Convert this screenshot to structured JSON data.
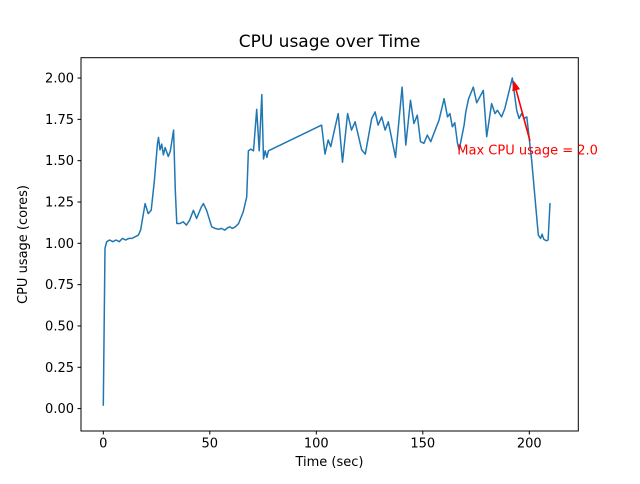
{
  "figure": {
    "kind": "matplotlib-line-figure",
    "background": "#ffffff",
    "spine_color": "#000000"
  },
  "chart_data": {
    "type": "line",
    "title": "CPU usage over Time",
    "xlabel": "Time (sec)",
    "ylabel": "CPU usage (cores)",
    "grid": false,
    "legend": "none",
    "xlim": [
      -10.47,
      223.0
    ],
    "ylim": [
      -0.1355,
      2.123
    ],
    "x_ticks": {
      "values": [
        0,
        50,
        100,
        150,
        200
      ],
      "labels": [
        "0",
        "50",
        "100",
        "150",
        "200"
      ]
    },
    "y_ticks": {
      "values": [
        0,
        0.25,
        0.5,
        0.75,
        1.0,
        1.25,
        1.5,
        1.75,
        2.0
      ],
      "labels": [
        "0.00",
        "0.25",
        "0.50",
        "0.75",
        "1.00",
        "1.25",
        "1.50",
        "1.75",
        "2.00"
      ]
    },
    "series": [
      {
        "name": "cpu-usage",
        "color": "#1f77b4",
        "line_width": 1.5,
        "points": [
          [
            0,
            0.02
          ],
          [
            0.8,
            0.97
          ],
          [
            1.6,
            1.01
          ],
          [
            3,
            1.02
          ],
          [
            4.5,
            1.01
          ],
          [
            6,
            1.02
          ],
          [
            7.5,
            1.01
          ],
          [
            9,
            1.03
          ],
          [
            10.5,
            1.02
          ],
          [
            12,
            1.03
          ],
          [
            13.5,
            1.03
          ],
          [
            15,
            1.04
          ],
          [
            16.5,
            1.05
          ],
          [
            17.5,
            1.08
          ],
          [
            19.6,
            1.24
          ],
          [
            21.1,
            1.18
          ],
          [
            22.5,
            1.2
          ],
          [
            24,
            1.38
          ],
          [
            25.4,
            1.6
          ],
          [
            25.9,
            1.64
          ],
          [
            26.6,
            1.565
          ],
          [
            27.4,
            1.6
          ],
          [
            28.2,
            1.535
          ],
          [
            29,
            1.58
          ],
          [
            30.5,
            1.525
          ],
          [
            31.5,
            1.56
          ],
          [
            32.2,
            1.62
          ],
          [
            33,
            1.685
          ],
          [
            33.8,
            1.32
          ],
          [
            34.5,
            1.12
          ],
          [
            36,
            1.12
          ],
          [
            37.5,
            1.13
          ],
          [
            39,
            1.11
          ],
          [
            40.5,
            1.14
          ],
          [
            42.3,
            1.2
          ],
          [
            43.8,
            1.15
          ],
          [
            46,
            1.22
          ],
          [
            47,
            1.24
          ],
          [
            48.5,
            1.2
          ],
          [
            50.9,
            1.1
          ],
          [
            52.5,
            1.09
          ],
          [
            54,
            1.085
          ],
          [
            55.5,
            1.09
          ],
          [
            57,
            1.08
          ],
          [
            58.5,
            1.095
          ],
          [
            59.5,
            1.1
          ],
          [
            60.5,
            1.09
          ],
          [
            62,
            1.1
          ],
          [
            63.5,
            1.12
          ],
          [
            65.7,
            1.19
          ],
          [
            67.3,
            1.28
          ],
          [
            68.1,
            1.56
          ],
          [
            69.2,
            1.57
          ],
          [
            70.5,
            1.56
          ],
          [
            72,
            1.81
          ],
          [
            73.2,
            1.56
          ],
          [
            74.4,
            1.9
          ],
          [
            75.2,
            1.51
          ],
          [
            76,
            1.56
          ],
          [
            76.8,
            1.52
          ],
          [
            77.5,
            1.56
          ],
          [
            102.5,
            1.715
          ],
          [
            104.1,
            1.54
          ],
          [
            105.6,
            1.625
          ],
          [
            106.8,
            1.585
          ],
          [
            108,
            1.655
          ],
          [
            110.3,
            1.785
          ],
          [
            112.3,
            1.49
          ],
          [
            114.7,
            1.785
          ],
          [
            116.5,
            1.685
          ],
          [
            118.2,
            1.735
          ],
          [
            121.3,
            1.565
          ],
          [
            123,
            1.54
          ],
          [
            126,
            1.755
          ],
          [
            127.6,
            1.795
          ],
          [
            129,
            1.715
          ],
          [
            130.7,
            1.765
          ],
          [
            132.3,
            1.685
          ],
          [
            133.8,
            1.735
          ],
          [
            137.2,
            1.52
          ],
          [
            140.3,
            1.945
          ],
          [
            142,
            1.595
          ],
          [
            144.2,
            1.865
          ],
          [
            145.8,
            1.725
          ],
          [
            147.4,
            1.775
          ],
          [
            148.9,
            1.615
          ],
          [
            150.5,
            1.605
          ],
          [
            152.1,
            1.655
          ],
          [
            153.7,
            1.615
          ],
          [
            157.6,
            1.745
          ],
          [
            160,
            1.875
          ],
          [
            161.6,
            1.765
          ],
          [
            162.7,
            1.785
          ],
          [
            163.9,
            1.705
          ],
          [
            165,
            1.73
          ],
          [
            166.3,
            1.605
          ],
          [
            167.1,
            1.565
          ],
          [
            169.4,
            1.715
          ],
          [
            170.2,
            1.795
          ],
          [
            171.5,
            1.875
          ],
          [
            173.7,
            1.945
          ],
          [
            175.3,
            1.85
          ],
          [
            178.4,
            1.925
          ],
          [
            180,
            1.645
          ],
          [
            182.3,
            1.845
          ],
          [
            183.9,
            1.785
          ],
          [
            185,
            1.805
          ],
          [
            187,
            1.765
          ],
          [
            188.5,
            1.815
          ],
          [
            192,
            2.0
          ],
          [
            194.1,
            1.805
          ],
          [
            195.2,
            1.755
          ],
          [
            196.4,
            1.785
          ],
          [
            197.6,
            1.755
          ],
          [
            198.8,
            1.765
          ],
          [
            201.1,
            1.5
          ],
          [
            204.2,
            1.05
          ],
          [
            205.3,
            1.03
          ],
          [
            206,
            1.055
          ],
          [
            206.8,
            1.025
          ],
          [
            208,
            1.015
          ],
          [
            208.8,
            1.02
          ],
          [
            209.7,
            1.24
          ]
        ]
      }
    ],
    "annotation": {
      "text": "Max CPU usage = 2.0",
      "color": "#ff0000",
      "text_anchor_xy": [
        166.2,
        1.565
      ],
      "arrow_tail_xy": [
        200.3,
        1.62
      ],
      "arrow_head_xy": [
        192.6,
        1.985
      ]
    }
  }
}
